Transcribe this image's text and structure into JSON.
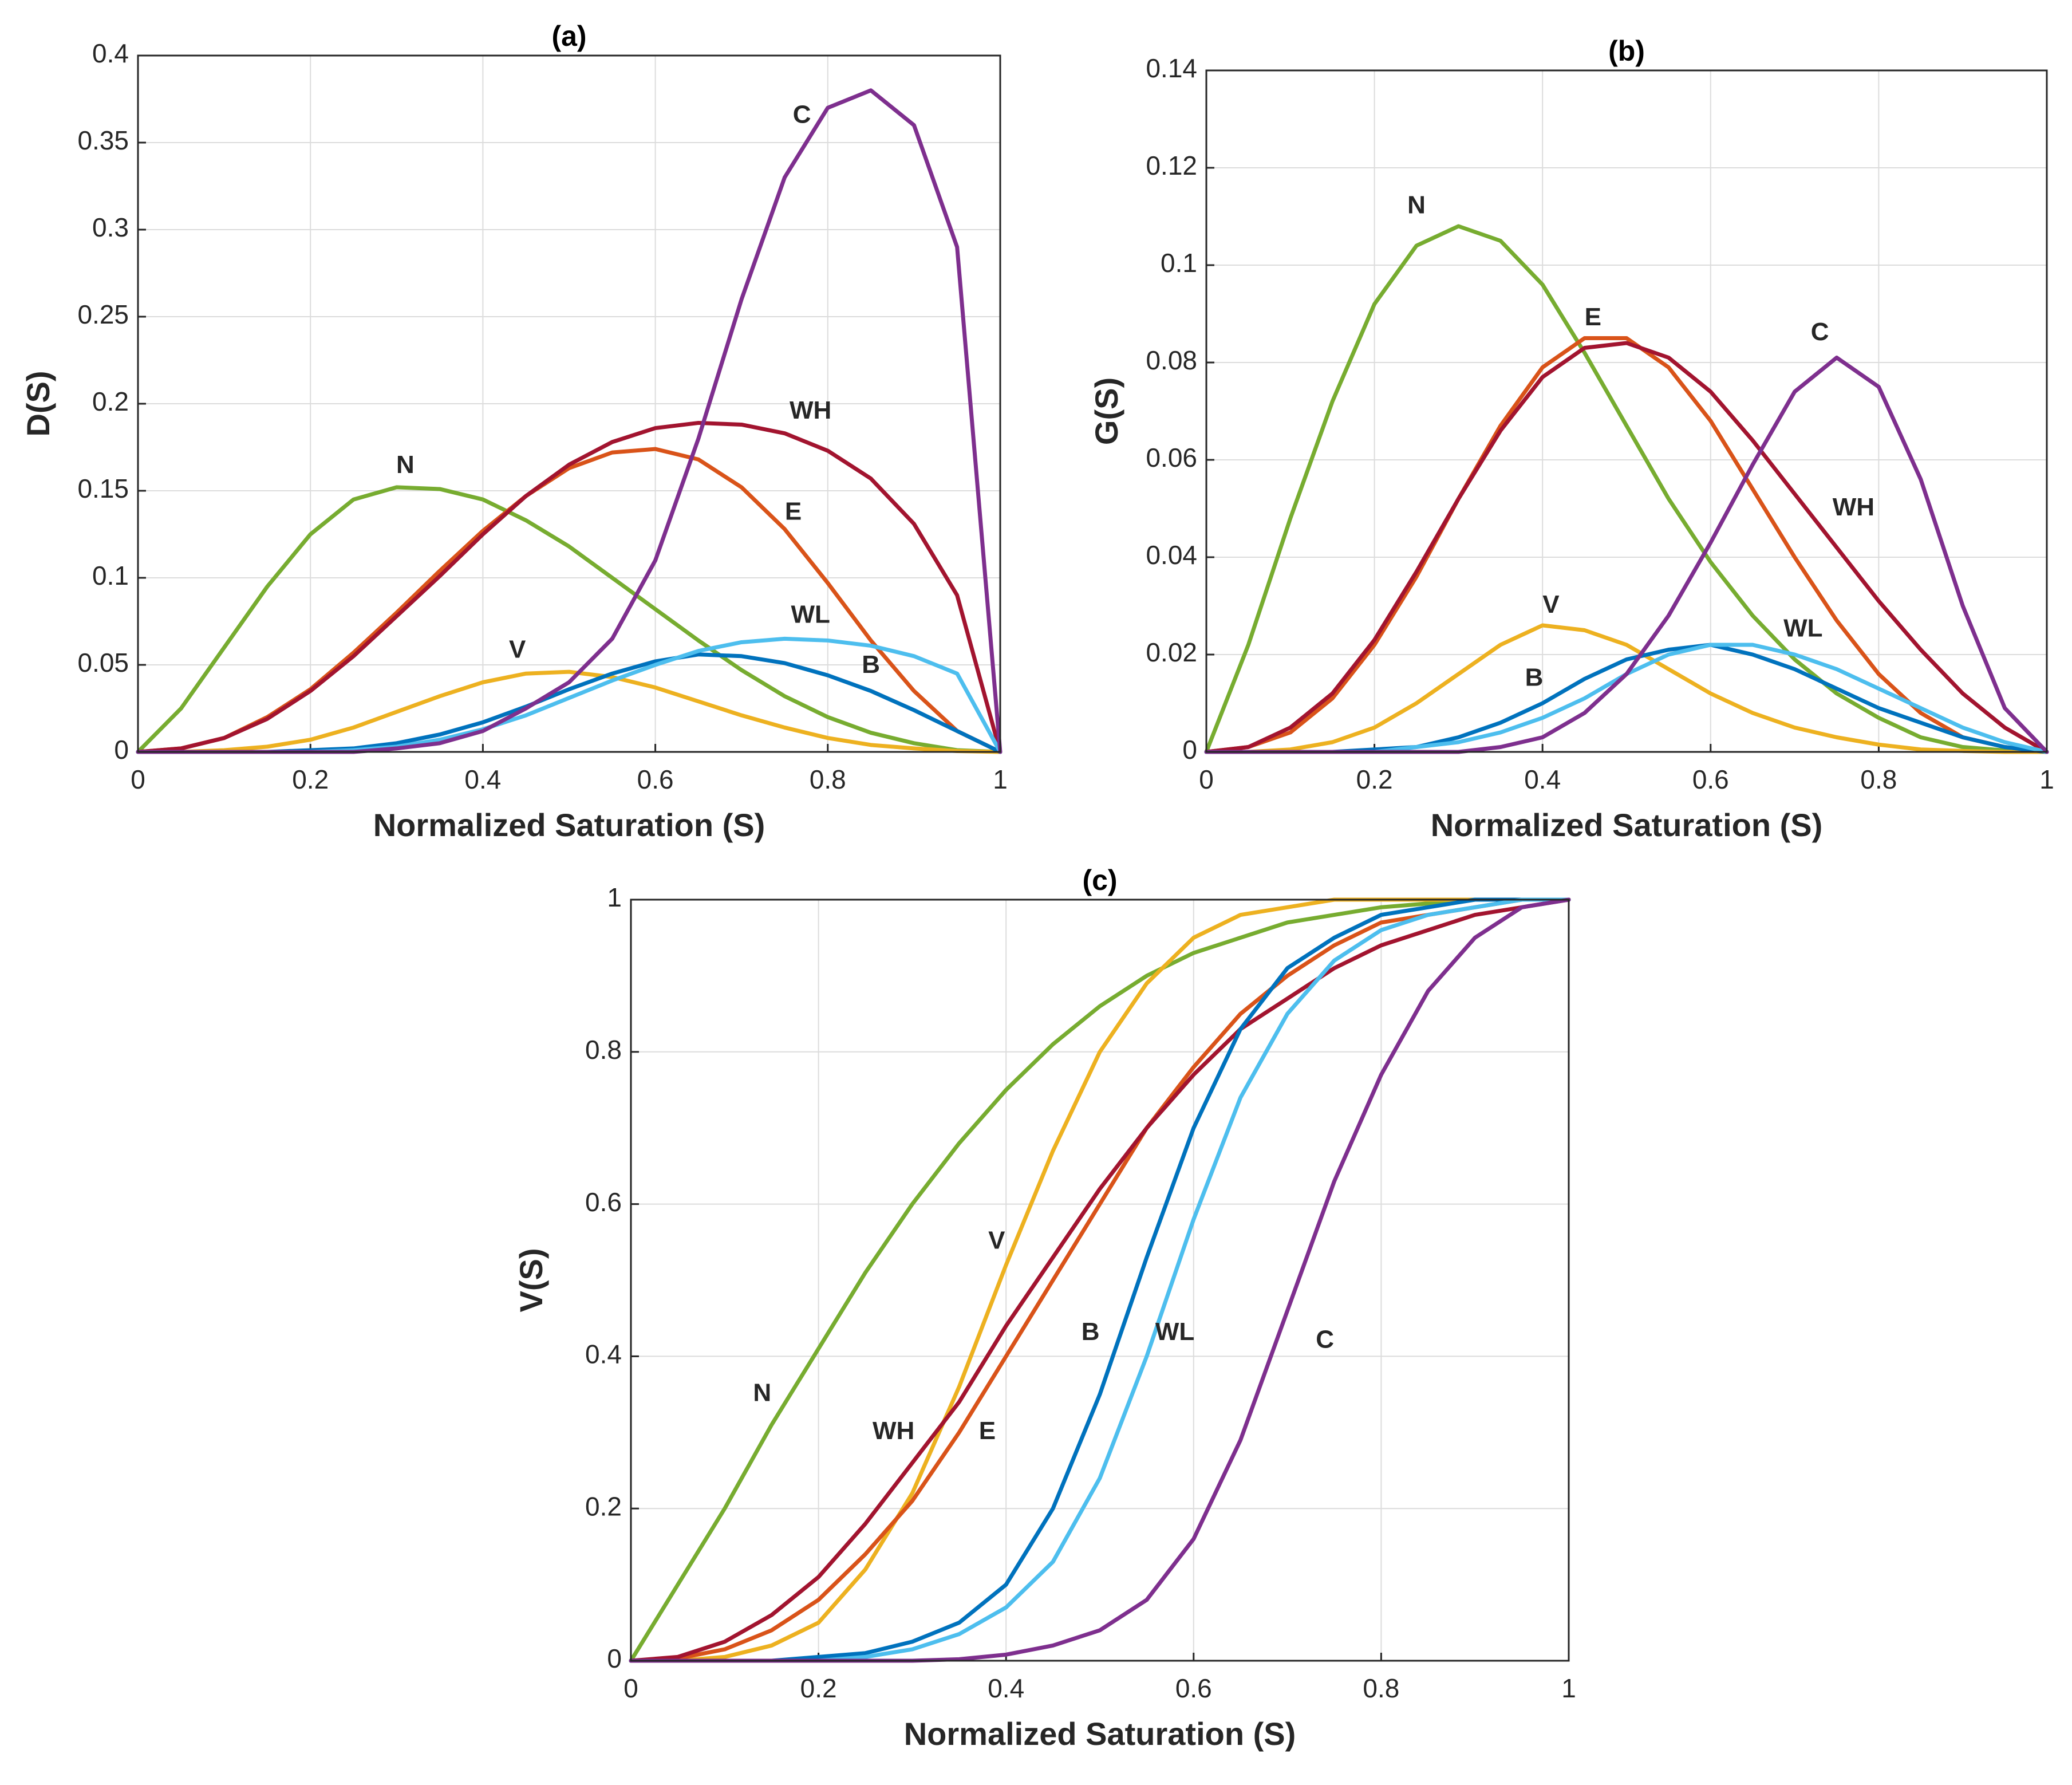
{
  "chart_data": [
    {
      "type": "line",
      "title": "(a)",
      "xlabel": "Normalized Saturation (S)",
      "ylabel": "D(S)",
      "xlim": [
        0,
        1
      ],
      "xticks": [
        0,
        0.2,
        0.4,
        0.6,
        0.8,
        1
      ],
      "ylim": [
        0,
        0.4
      ],
      "yticks": [
        0,
        0.05,
        0.1,
        0.15,
        0.2,
        0.25,
        0.3,
        0.35,
        0.4
      ],
      "grid": true,
      "x": [
        0,
        0.05,
        0.1,
        0.15,
        0.2,
        0.25,
        0.3,
        0.35,
        0.4,
        0.45,
        0.5,
        0.55,
        0.6,
        0.65,
        0.7,
        0.75,
        0.8,
        0.85,
        0.9,
        0.95,
        1
      ],
      "series": [
        {
          "name": "N",
          "color": "#77AC30",
          "values": [
            0,
            0.025,
            0.06,
            0.095,
            0.125,
            0.145,
            0.152,
            0.151,
            0.145,
            0.133,
            0.118,
            0.1,
            0.082,
            0.064,
            0.047,
            0.032,
            0.02,
            0.011,
            0.005,
            0.001,
            0
          ]
        },
        {
          "name": "V",
          "color": "#EDB120",
          "values": [
            0,
            0,
            0.001,
            0.003,
            0.007,
            0.014,
            0.023,
            0.032,
            0.04,
            0.045,
            0.046,
            0.043,
            0.037,
            0.029,
            0.021,
            0.014,
            0.008,
            0.004,
            0.002,
            0.0005,
            0
          ]
        },
        {
          "name": "E",
          "color": "#D95319",
          "values": [
            0,
            0.002,
            0.008,
            0.02,
            0.036,
            0.057,
            0.08,
            0.104,
            0.127,
            0.147,
            0.163,
            0.172,
            0.174,
            0.168,
            0.152,
            0.128,
            0.097,
            0.064,
            0.035,
            0.012,
            0
          ]
        },
        {
          "name": "WH",
          "color": "#A2142F",
          "values": [
            0,
            0.002,
            0.008,
            0.019,
            0.035,
            0.055,
            0.078,
            0.101,
            0.125,
            0.147,
            0.165,
            0.178,
            0.186,
            0.189,
            0.188,
            0.183,
            0.173,
            0.157,
            0.131,
            0.09,
            0
          ]
        },
        {
          "name": "B",
          "color": "#0072BD",
          "values": [
            0,
            0,
            0,
            0,
            0.001,
            0.002,
            0.005,
            0.01,
            0.017,
            0.026,
            0.036,
            0.045,
            0.052,
            0.056,
            0.055,
            0.051,
            0.044,
            0.035,
            0.024,
            0.012,
            0
          ]
        },
        {
          "name": "WL",
          "color": "#4DBEEE",
          "values": [
            0,
            0,
            0,
            0,
            0,
            0.001,
            0.003,
            0.007,
            0.013,
            0.021,
            0.031,
            0.041,
            0.05,
            0.058,
            0.063,
            0.065,
            0.064,
            0.061,
            0.055,
            0.045,
            0
          ]
        },
        {
          "name": "C",
          "color": "#7E2F8E",
          "values": [
            0,
            0,
            0,
            0,
            0,
            0,
            0.002,
            0.005,
            0.012,
            0.025,
            0.04,
            0.065,
            0.11,
            0.18,
            0.26,
            0.33,
            0.37,
            0.38,
            0.36,
            0.29,
            0
          ]
        }
      ]
    },
    {
      "type": "line",
      "title": "(b)",
      "xlabel": "Normalized Saturation (S)",
      "ylabel": "G(S)",
      "xlim": [
        0,
        1
      ],
      "xticks": [
        0,
        0.2,
        0.4,
        0.6,
        0.8,
        1
      ],
      "ylim": [
        0,
        0.14
      ],
      "yticks": [
        0,
        0.02,
        0.04,
        0.06,
        0.08,
        0.1,
        0.12,
        0.14
      ],
      "grid": true,
      "x": [
        0,
        0.05,
        0.1,
        0.15,
        0.2,
        0.25,
        0.3,
        0.35,
        0.4,
        0.45,
        0.5,
        0.55,
        0.6,
        0.65,
        0.7,
        0.75,
        0.8,
        0.85,
        0.9,
        0.95,
        1
      ],
      "series": [
        {
          "name": "N",
          "color": "#77AC30",
          "values": [
            0,
            0.022,
            0.048,
            0.072,
            0.092,
            0.104,
            0.108,
            0.105,
            0.096,
            0.082,
            0.067,
            0.052,
            0.039,
            0.028,
            0.019,
            0.012,
            0.007,
            0.003,
            0.001,
            0.0003,
            0
          ]
        },
        {
          "name": "V",
          "color": "#EDB120",
          "values": [
            0,
            0,
            0.0005,
            0.002,
            0.005,
            0.01,
            0.016,
            0.022,
            0.026,
            0.025,
            0.022,
            0.017,
            0.012,
            0.008,
            0.005,
            0.003,
            0.0015,
            0.0005,
            0.0002,
            0,
            0
          ]
        },
        {
          "name": "E",
          "color": "#D95319",
          "values": [
            0,
            0.001,
            0.004,
            0.011,
            0.022,
            0.036,
            0.052,
            0.067,
            0.079,
            0.085,
            0.085,
            0.079,
            0.068,
            0.054,
            0.04,
            0.027,
            0.016,
            0.008,
            0.003,
            0.001,
            0
          ]
        },
        {
          "name": "WH",
          "color": "#A2142F",
          "values": [
            0,
            0.001,
            0.005,
            0.012,
            0.023,
            0.037,
            0.052,
            0.066,
            0.077,
            0.083,
            0.084,
            0.081,
            0.074,
            0.064,
            0.053,
            0.042,
            0.031,
            0.021,
            0.012,
            0.005,
            0
          ]
        },
        {
          "name": "B",
          "color": "#0072BD",
          "values": [
            0,
            0,
            0,
            0,
            0.0005,
            0.001,
            0.003,
            0.006,
            0.01,
            0.015,
            0.019,
            0.021,
            0.022,
            0.02,
            0.017,
            0.013,
            0.009,
            0.006,
            0.003,
            0.001,
            0
          ]
        },
        {
          "name": "WL",
          "color": "#4DBEEE",
          "values": [
            0,
            0,
            0,
            0,
            0,
            0.001,
            0.002,
            0.004,
            0.007,
            0.011,
            0.016,
            0.02,
            0.022,
            0.022,
            0.02,
            0.017,
            0.013,
            0.009,
            0.005,
            0.002,
            0
          ]
        },
        {
          "name": "C",
          "color": "#7E2F8E",
          "values": [
            0,
            0,
            0,
            0,
            0,
            0,
            0,
            0.001,
            0.003,
            0.008,
            0.016,
            0.028,
            0.043,
            0.059,
            0.074,
            0.081,
            0.075,
            0.056,
            0.03,
            0.009,
            0
          ]
        }
      ]
    },
    {
      "type": "line",
      "title": "(c)",
      "xlabel": "Normalized Saturation (S)",
      "ylabel": "V(S)",
      "xlim": [
        0,
        1
      ],
      "xticks": [
        0,
        0.2,
        0.4,
        0.6,
        0.8,
        1
      ],
      "ylim": [
        0,
        1
      ],
      "yticks": [
        0,
        0.2,
        0.4,
        0.6,
        0.8,
        1
      ],
      "grid": true,
      "x": [
        0,
        0.05,
        0.1,
        0.15,
        0.2,
        0.25,
        0.3,
        0.35,
        0.4,
        0.45,
        0.5,
        0.55,
        0.6,
        0.65,
        0.7,
        0.75,
        0.8,
        0.85,
        0.9,
        0.95,
        1
      ],
      "series": [
        {
          "name": "N",
          "color": "#77AC30",
          "values": [
            0,
            0.1,
            0.2,
            0.31,
            0.41,
            0.51,
            0.6,
            0.68,
            0.75,
            0.81,
            0.86,
            0.9,
            0.93,
            0.95,
            0.97,
            0.98,
            0.99,
            0.995,
            1,
            1,
            1
          ]
        },
        {
          "name": "V",
          "color": "#EDB120",
          "values": [
            0,
            0,
            0.005,
            0.02,
            0.05,
            0.12,
            0.22,
            0.36,
            0.52,
            0.67,
            0.8,
            0.89,
            0.95,
            0.98,
            0.99,
            1,
            1,
            1,
            1,
            1,
            1
          ]
        },
        {
          "name": "E",
          "color": "#D95319",
          "values": [
            0,
            0.003,
            0.015,
            0.04,
            0.08,
            0.14,
            0.21,
            0.3,
            0.4,
            0.5,
            0.6,
            0.7,
            0.78,
            0.85,
            0.9,
            0.94,
            0.97,
            0.98,
            0.99,
            1,
            1
          ]
        },
        {
          "name": "WH",
          "color": "#A2142F",
          "values": [
            0,
            0.005,
            0.025,
            0.06,
            0.11,
            0.18,
            0.26,
            0.34,
            0.44,
            0.53,
            0.62,
            0.7,
            0.77,
            0.83,
            0.87,
            0.91,
            0.94,
            0.96,
            0.98,
            0.99,
            1
          ]
        },
        {
          "name": "B",
          "color": "#0072BD",
          "values": [
            0,
            0,
            0,
            0,
            0.005,
            0.01,
            0.025,
            0.05,
            0.1,
            0.2,
            0.35,
            0.53,
            0.7,
            0.83,
            0.91,
            0.95,
            0.98,
            0.99,
            1,
            1,
            1
          ]
        },
        {
          "name": "WL",
          "color": "#4DBEEE",
          "values": [
            0,
            0,
            0,
            0,
            0,
            0.005,
            0.015,
            0.035,
            0.07,
            0.13,
            0.24,
            0.4,
            0.58,
            0.74,
            0.85,
            0.92,
            0.96,
            0.98,
            0.99,
            1,
            1
          ]
        },
        {
          "name": "C",
          "color": "#7E2F8E",
          "values": [
            0,
            0,
            0,
            0,
            0,
            0,
            0,
            0.002,
            0.008,
            0.02,
            0.04,
            0.08,
            0.16,
            0.29,
            0.46,
            0.63,
            0.77,
            0.88,
            0.95,
            0.99,
            1
          ]
        }
      ]
    }
  ]
}
